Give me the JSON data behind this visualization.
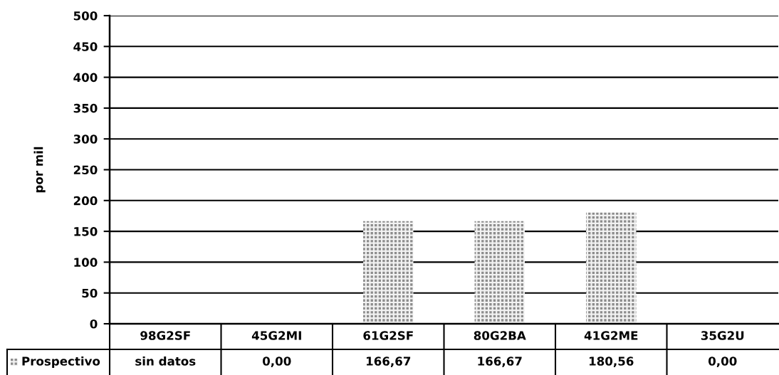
{
  "chart_data": {
    "type": "bar",
    "ylabel": "por mil",
    "categories": [
      "98G2SF",
      "45G2MI",
      "61G2SF",
      "80G2BA",
      "41G2ME",
      "35G2U"
    ],
    "series": [
      {
        "name": "Prospectivo",
        "color": "#8c8c8c",
        "values": [
          null,
          0.0,
          166.67,
          166.67,
          180.56,
          0.0
        ],
        "value_labels": [
          "sin datos",
          "0,00",
          "166,67",
          "166,67",
          "180,56",
          "0,00"
        ]
      }
    ],
    "ylim": [
      0,
      500
    ],
    "yticks": [
      0,
      50,
      100,
      150,
      200,
      250,
      300,
      350,
      400,
      450,
      500
    ],
    "grid": "y",
    "legend": "bottom left"
  }
}
